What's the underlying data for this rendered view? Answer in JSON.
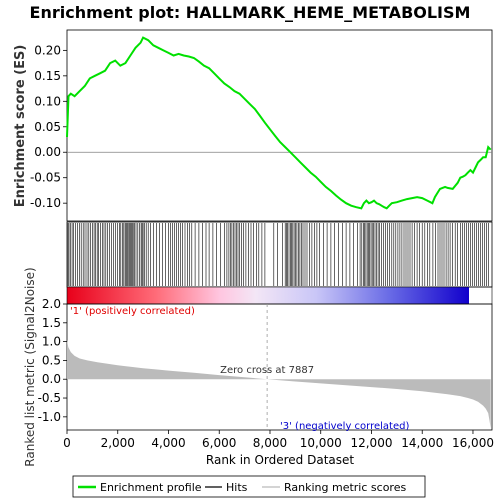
{
  "chart_data": {
    "type": "line",
    "title": "Enrichment plot: HALLMARK_HEME_METABOLISM",
    "panels": {
      "es": {
        "ylabel": "Enrichment score (ES)",
        "ylim": [
          -0.135,
          0.24
        ],
        "yticks": [
          "-0.10",
          "-0.05",
          "0.00",
          "0.05",
          "0.10",
          "0.15",
          "0.20"
        ],
        "ytick_values": [
          -0.1,
          -0.05,
          0.0,
          0.05,
          0.1,
          0.15,
          0.2
        ],
        "series_color": "#00e000",
        "x": [
          0,
          60,
          150,
          300,
          500,
          700,
          900,
          1100,
          1300,
          1500,
          1700,
          1900,
          2100,
          2300,
          2500,
          2700,
          2900,
          3000,
          3200,
          3400,
          3600,
          3800,
          4000,
          4200,
          4400,
          4600,
          4800,
          5000,
          5200,
          5400,
          5600,
          5800,
          6000,
          6200,
          6400,
          6600,
          6800,
          7000,
          7200,
          7400,
          7600,
          7800,
          8000,
          8200,
          8400,
          8600,
          8800,
          9000,
          9200,
          9400,
          9600,
          9800,
          10000,
          10200,
          10400,
          10600,
          10800,
          11000,
          11200,
          11400,
          11600,
          11700,
          11800,
          11900,
          12000,
          12100,
          12200,
          12300,
          12400,
          12500,
          12600,
          12700,
          12800,
          13000,
          13200,
          13400,
          13600,
          13800,
          14000,
          14200,
          14400,
          14500,
          14600,
          14700,
          14800,
          14900,
          15000,
          15200,
          15400,
          15500,
          15600,
          15700,
          15800,
          15900,
          16000,
          16100,
          16200,
          16300,
          16400,
          16500,
          16600,
          16700
        ],
        "values": [
          0.03,
          0.11,
          0.115,
          0.11,
          0.12,
          0.13,
          0.145,
          0.15,
          0.155,
          0.16,
          0.175,
          0.18,
          0.17,
          0.175,
          0.19,
          0.205,
          0.215,
          0.225,
          0.22,
          0.21,
          0.205,
          0.2,
          0.195,
          0.19,
          0.193,
          0.19,
          0.188,
          0.185,
          0.178,
          0.17,
          0.165,
          0.155,
          0.145,
          0.135,
          0.128,
          0.12,
          0.115,
          0.105,
          0.095,
          0.085,
          0.072,
          0.058,
          0.045,
          0.032,
          0.02,
          0.01,
          0.0,
          -0.01,
          -0.02,
          -0.03,
          -0.04,
          -0.048,
          -0.058,
          -0.068,
          -0.076,
          -0.085,
          -0.093,
          -0.1,
          -0.105,
          -0.108,
          -0.11,
          -0.1,
          -0.095,
          -0.1,
          -0.098,
          -0.095,
          -0.1,
          -0.102,
          -0.105,
          -0.108,
          -0.11,
          -0.105,
          -0.1,
          -0.098,
          -0.095,
          -0.092,
          -0.09,
          -0.088,
          -0.09,
          -0.095,
          -0.1,
          -0.088,
          -0.08,
          -0.072,
          -0.07,
          -0.068,
          -0.07,
          -0.072,
          -0.06,
          -0.05,
          -0.048,
          -0.045,
          -0.04,
          -0.035,
          -0.04,
          -0.03,
          -0.02,
          -0.015,
          -0.01,
          -0.01,
          0.01,
          0.005
        ]
      },
      "hits": {
        "positions": [
          40,
          80,
          130,
          200,
          260,
          330,
          420,
          500,
          560,
          640,
          710,
          790,
          860,
          930,
          1000,
          1070,
          1130,
          1190,
          1250,
          1320,
          1390,
          1460,
          1530,
          1600,
          1680,
          1760,
          1840,
          1920,
          2000,
          2060,
          2120,
          2180,
          2240,
          2290,
          2330,
          2370,
          2410,
          2450,
          2490,
          2530,
          2570,
          2610,
          2660,
          2720,
          2790,
          2860,
          2920,
          2960,
          3000,
          3050,
          3120,
          3200,
          3300,
          3400,
          3520,
          3640,
          3760,
          3880,
          4000,
          4080,
          4160,
          4240,
          4320,
          4400,
          4480,
          4560,
          4650,
          4740,
          4830,
          4920,
          5050,
          5200,
          5350,
          5480,
          5600,
          5750,
          5900,
          6050,
          6200,
          6300,
          6380,
          6440,
          6500,
          6560,
          6620,
          6680,
          6740,
          6800,
          6880,
          6960,
          7050,
          7150,
          7250,
          7350,
          7460,
          7560,
          7680,
          7800,
          8150,
          8300,
          8500,
          8600,
          8650,
          8700,
          8750,
          8800,
          8850,
          8900,
          8950,
          9000,
          9060,
          9120,
          9180,
          9240,
          9300,
          9380,
          9460,
          9550,
          9650,
          9750,
          9850,
          9950,
          10100,
          10250,
          10400,
          10550,
          10700,
          10850,
          11000,
          11150,
          11300,
          11450,
          11550,
          11620,
          11680,
          11730,
          11780,
          11830,
          11880,
          11930,
          11980,
          12030,
          12080,
          12140,
          12200,
          12260,
          12320,
          12400,
          12480,
          12560,
          12640,
          12720,
          12800,
          12880,
          12960,
          13040,
          13120,
          13200,
          13280,
          13360,
          13440,
          13520,
          13600,
          13700,
          13800,
          13900,
          14000,
          14100,
          14200,
          14300,
          14420,
          14520,
          14620,
          14700,
          14780,
          14860,
          14940,
          15020,
          15100,
          15200,
          15300,
          15400,
          15500,
          15580,
          15660,
          15740,
          15820,
          15900,
          15980,
          16060,
          16140,
          16220,
          16300,
          16380,
          16460,
          16540,
          16620
        ]
      },
      "metric": {
        "ylabel": "Ranked list metric (Signal2Noise)",
        "ylim": [
          -1.35,
          2.0
        ],
        "yticks": [
          "-1.0",
          "-0.5",
          "0.0",
          "0.5",
          "1.0",
          "1.5",
          "2.0"
        ],
        "ytick_values": [
          -1.0,
          -0.5,
          0.0,
          0.5,
          1.0,
          1.5,
          2.0
        ],
        "x": [
          0,
          50,
          150,
          300,
          500,
          800,
          1200,
          1600,
          2000,
          2500,
          3000,
          3500,
          4000,
          5000,
          6000,
          7000,
          7887,
          9000,
          10000,
          11000,
          12000,
          13000,
          14000,
          14500,
          15000,
          15500,
          15800,
          16000,
          16200,
          16400,
          16500,
          16600,
          16650,
          16700
        ],
        "values": [
          1.05,
          0.85,
          0.72,
          0.62,
          0.55,
          0.5,
          0.45,
          0.41,
          0.37,
          0.33,
          0.29,
          0.26,
          0.23,
          0.17,
          0.11,
          0.05,
          0.0,
          -0.06,
          -0.11,
          -0.16,
          -0.21,
          -0.26,
          -0.32,
          -0.36,
          -0.4,
          -0.45,
          -0.5,
          -0.54,
          -0.6,
          -0.7,
          -0.78,
          -0.9,
          -1.1,
          -1.3
        ],
        "zero_cross_label": "Zero cross at 7887",
        "zero_cross": 7887,
        "pos_label": "'1' (positively correlated)",
        "neg_label": "'3' (negatively correlated)"
      }
    },
    "xlabel": "Rank in Ordered Dataset",
    "xlim": [
      0,
      16750
    ],
    "xticks": [
      "0",
      "2,000",
      "4,000",
      "6,000",
      "8,000",
      "10,000",
      "12,000",
      "14,000",
      "16,000"
    ],
    "xtick_values": [
      0,
      2000,
      4000,
      6000,
      8000,
      10000,
      12000,
      14000,
      16000
    ],
    "legend": {
      "placement": "bottom",
      "items": [
        {
          "label": "Enrichment profile",
          "color": "#00e000"
        },
        {
          "label": "Hits",
          "color": "#000000"
        },
        {
          "label": "Ranking metric scores",
          "color": "#bbbbbb"
        }
      ]
    }
  }
}
